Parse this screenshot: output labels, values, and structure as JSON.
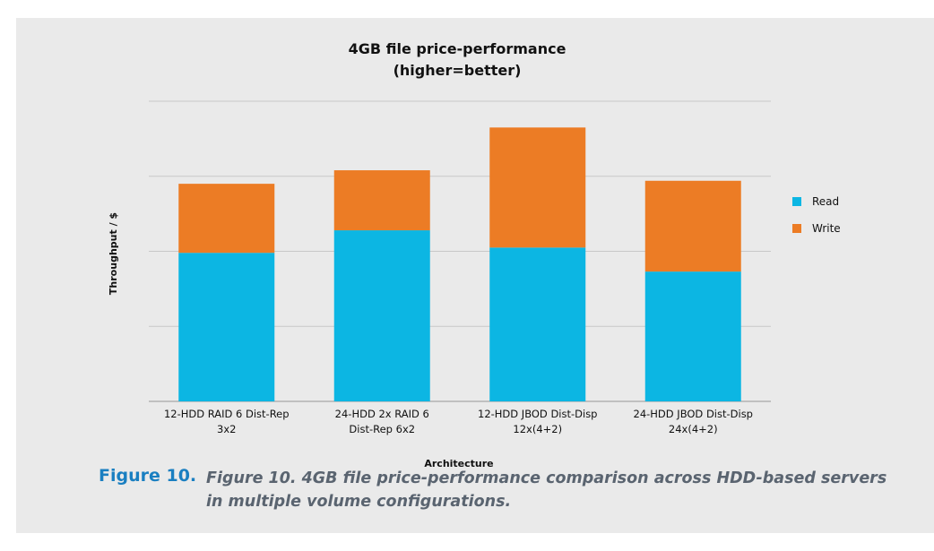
{
  "chart_data": {
    "type": "bar",
    "stacked": true,
    "title_line1": "4GB file price-performance",
    "title_line2": "(higher=better)",
    "xlabel": "Architecture",
    "ylabel": "Throughput / $",
    "categories": [
      [
        "12-HDD RAID 6 Dist-Rep",
        "3x2"
      ],
      [
        "24-HDD 2x RAID 6",
        "Dist-Rep 6x2"
      ],
      [
        "12-HDD JBOD Dist-Disp",
        "12x(4+2)"
      ],
      [
        "24-HDD JBOD Dist-Disp",
        "24x(4+2)"
      ]
    ],
    "series": [
      {
        "name": "Read",
        "color": "#0cb6e3",
        "values": [
          1.98,
          2.28,
          2.05,
          1.73
        ]
      },
      {
        "name": "Write",
        "color": "#ec7c25",
        "values": [
          0.92,
          0.8,
          1.6,
          1.21
        ]
      }
    ],
    "ylim": [
      0,
      4
    ],
    "y_ticks": [
      0,
      1,
      2,
      3,
      4
    ],
    "y_tick_labels_shown": false,
    "grid": true,
    "legend_position": "right",
    "gridline_color": "#c8c8c8",
    "baseline_color": "#a6a6a6"
  },
  "caption": {
    "label": "Figure 10.",
    "text": "Figure 10. 4GB file price-performance comparison across HDD-based servers in multiple volume configurations.",
    "label_color": "#1a7fc1",
    "text_color": "#5a6470"
  }
}
